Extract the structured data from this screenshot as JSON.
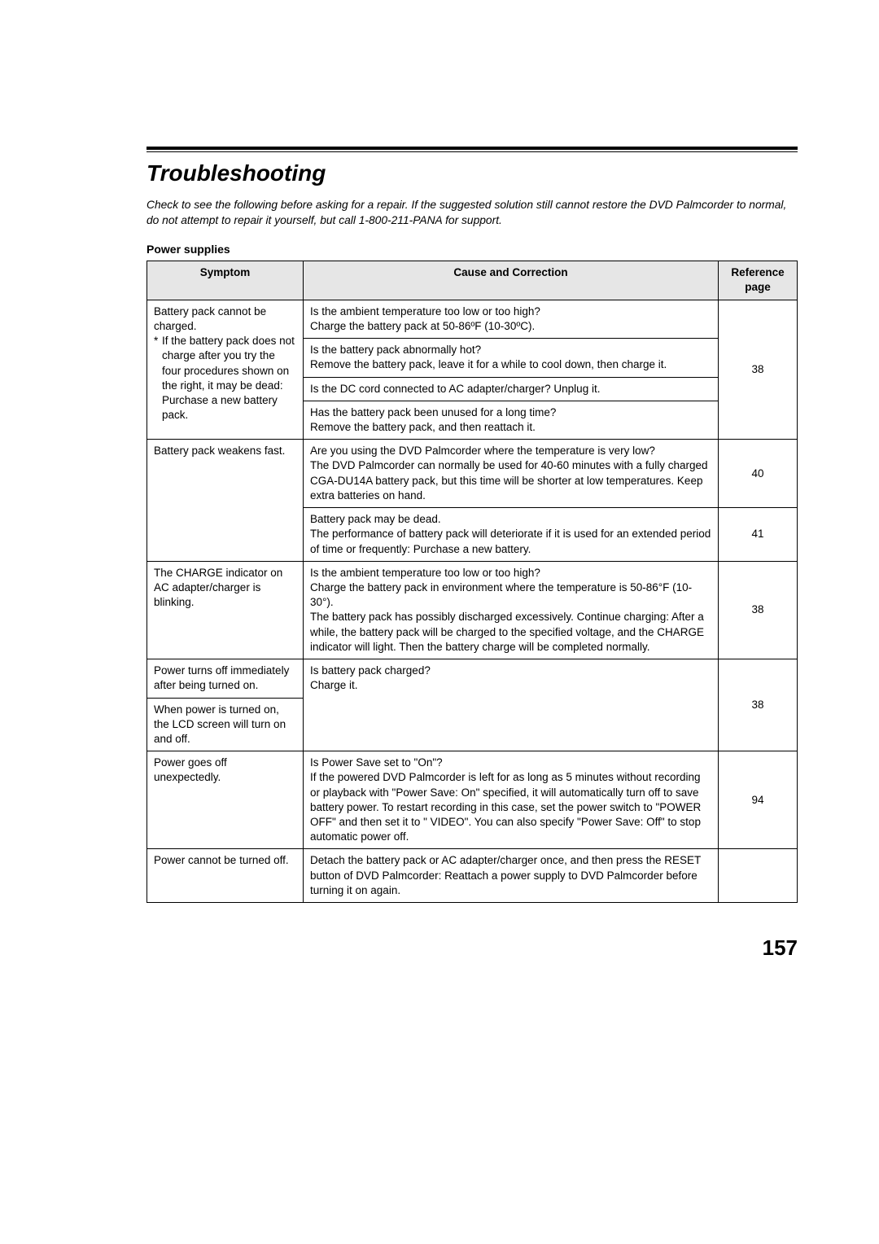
{
  "heading": "Troubleshooting",
  "intro": "Check to see the following before asking for a repair. If the suggested solution still cannot restore the DVD Palmcorder to normal, do not attempt to repair it yourself, but call 1-800-211-PANA for support.",
  "section_label": "Power supplies",
  "table": {
    "headers": {
      "symptom": "Symptom",
      "cause": "Cause and Correction",
      "ref": "Reference page"
    },
    "rows": {
      "r1": {
        "symptom_line1": "Battery pack cannot be charged.",
        "symptom_bullet": "If the battery pack does not charge after you try the four procedures shown on the right, it may be dead: Purchase a new battery pack.",
        "c1": "Is the ambient temperature too low or too high?\nCharge the battery pack at 50-86ºF (10-30ºC).",
        "c2": "Is the battery pack abnormally hot?\nRemove the battery pack, leave it for a while to cool down, then charge it.",
        "c3": "Is the DC cord connected to AC adapter/charger? Unplug it.",
        "c4": "Has the battery pack been unused for a long time?\nRemove the battery pack, and then reattach it.",
        "ref": "38"
      },
      "r2": {
        "symptom": "Battery pack weakens fast.",
        "c1": "Are you using the DVD Palmcorder where the temperature is very low?\nThe DVD Palmcorder can normally be used for 40-60 minutes with a fully charged CGA-DU14A battery pack, but this time will be shorter at low temperatures. Keep extra batteries on hand.",
        "c2": "Battery pack may be dead.\nThe performance of battery pack will deteriorate if it is used for an extended period of time or frequently: Purchase a new battery.",
        "ref1": "40",
        "ref2": "41"
      },
      "r3": {
        "symptom": "The CHARGE indicator on AC adapter/charger is blinking.",
        "c": "Is the ambient temperature too low or too high?\nCharge the battery pack in environment where the temperature is 50-86°F (10-30°).\nThe battery pack has possibly discharged excessively. Continue charging: After a while, the battery pack will be charged to the specified voltage, and the CHARGE indicator will light. Then the battery charge will be completed normally.",
        "ref": "38"
      },
      "r4": {
        "symptom1": "Power turns off immediately after being turned on.",
        "symptom2": "When power is turned on, the LCD screen will turn on and off.",
        "c": "Is battery pack charged?\nCharge it.",
        "ref": "38"
      },
      "r5": {
        "symptom": "Power goes off unexpectedly.",
        "c": "Is Power Save set to \"On\"?\nIf the powered DVD Palmcorder is left for as long as 5 minutes without recording or playback with \"Power Save: On\" specified, it will automatically turn off to save battery power. To restart recording in this case, set the power switch to \"POWER OFF\" and then set it to \"    VIDEO\". You can also specify \"Power Save: Off\" to stop automatic power off.",
        "ref": "94"
      },
      "r6": {
        "symptom": "Power cannot be turned off.",
        "c": "Detach the battery pack or AC adapter/charger once, and then press the RESET button of DVD Palmcorder: Reattach a power supply to DVD Palmcorder before turning it on again.",
        "ref": ""
      }
    }
  },
  "page_number": "157",
  "style": {
    "background": "#ffffff",
    "text_color": "#000000",
    "header_bg": "#e6e6e6",
    "border_color": "#000000",
    "font_body_pt": 10,
    "font_h1_pt": 21,
    "font_pageno_pt": 20
  }
}
